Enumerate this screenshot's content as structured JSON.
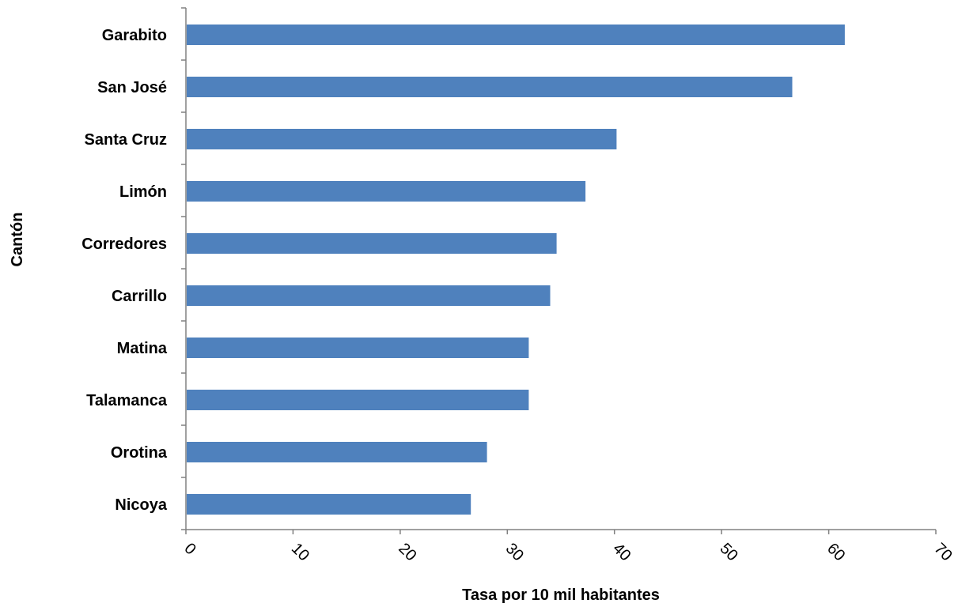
{
  "chart_data": {
    "type": "bar",
    "orientation": "horizontal",
    "categories": [
      "Garabito",
      "San José",
      "Santa Cruz",
      "Limón",
      "Corredores",
      "Carrillo",
      "Matina",
      "Talamanca",
      "Orotina",
      "Nicoya"
    ],
    "values": [
      61.5,
      56.6,
      40.2,
      37.3,
      34.6,
      34.0,
      32.0,
      32.0,
      28.1,
      26.6
    ],
    "xlabel": "Tasa por 10 mil habitantes",
    "ylabel": "Cantón",
    "xlim": [
      0,
      70
    ],
    "xticks": [
      0,
      10,
      20,
      30,
      40,
      50,
      60,
      70
    ],
    "grid": false,
    "colors": {
      "bar": "#4f81bd",
      "axis": "#808080"
    }
  }
}
